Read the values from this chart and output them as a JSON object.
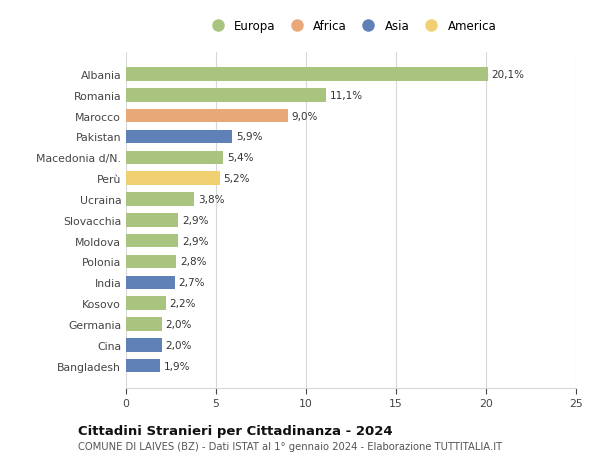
{
  "countries": [
    "Albania",
    "Romania",
    "Marocco",
    "Pakistan",
    "Macedonia d/N.",
    "Perù",
    "Ucraina",
    "Slovacchia",
    "Moldova",
    "Polonia",
    "India",
    "Kosovo",
    "Germania",
    "Cina",
    "Bangladesh"
  ],
  "values": [
    20.1,
    11.1,
    9.0,
    5.9,
    5.4,
    5.2,
    3.8,
    2.9,
    2.9,
    2.8,
    2.7,
    2.2,
    2.0,
    2.0,
    1.9
  ],
  "labels": [
    "20,1%",
    "11,1%",
    "9,0%",
    "5,9%",
    "5,4%",
    "5,2%",
    "3,8%",
    "2,9%",
    "2,9%",
    "2,8%",
    "2,7%",
    "2,2%",
    "2,0%",
    "2,0%",
    "1,9%"
  ],
  "continents": [
    "Europa",
    "Europa",
    "Africa",
    "Asia",
    "Europa",
    "America",
    "Europa",
    "Europa",
    "Europa",
    "Europa",
    "Asia",
    "Europa",
    "Europa",
    "Asia",
    "Asia"
  ],
  "colors": {
    "Europa": "#a8c47e",
    "Africa": "#e8a878",
    "Asia": "#6080b8",
    "America": "#f0d070"
  },
  "legend_order": [
    "Europa",
    "Africa",
    "Asia",
    "America"
  ],
  "xlim": [
    0,
    25
  ],
  "xticks": [
    0,
    5,
    10,
    15,
    20,
    25
  ],
  "title": "Cittadini Stranieri per Cittadinanza - 2024",
  "subtitle": "COMUNE DI LAIVES (BZ) - Dati ISTAT al 1° gennaio 2024 - Elaborazione TUTTITALIA.IT",
  "bg_color": "#ffffff",
  "grid_color": "#d8d8d8"
}
